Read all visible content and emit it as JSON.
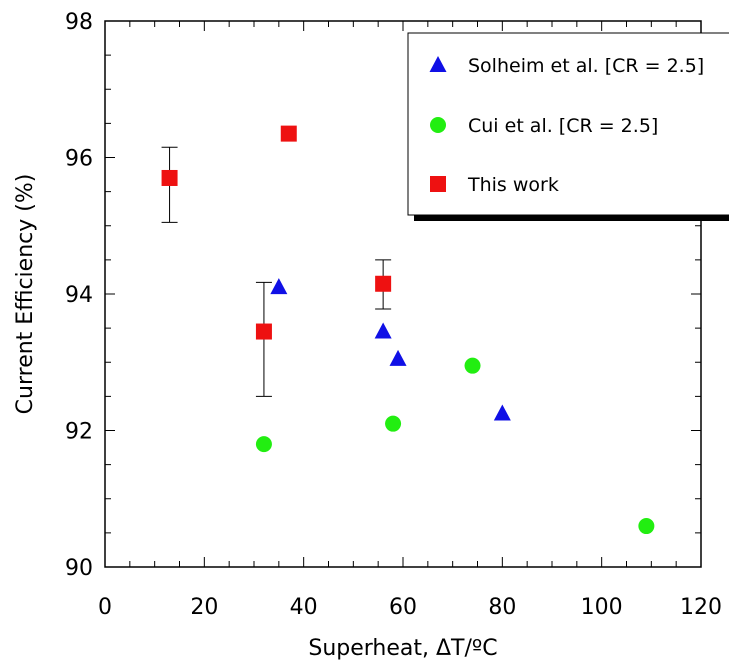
{
  "chart_data": {
    "type": "scatter",
    "xlabel": "Superheat, ΔT/ºC",
    "ylabel": "Current Efficiency (%)",
    "xlim": [
      0,
      120
    ],
    "ylim": [
      90,
      98
    ],
    "x_ticks": [
      "0",
      "20",
      "40",
      "60",
      "80",
      "100",
      "120"
    ],
    "y_ticks": [
      "90",
      "92",
      "94",
      "96",
      "98"
    ],
    "legend_position": "top-right",
    "grid": false,
    "series": [
      {
        "name": "Solheim et al. [CR = 2.5]",
        "marker": "triangle",
        "color": "#1010e6",
        "points": [
          {
            "x": 35,
            "y": 94.1
          },
          {
            "x": 56,
            "y": 93.45
          },
          {
            "x": 59,
            "y": 93.05
          },
          {
            "x": 80,
            "y": 92.25
          }
        ]
      },
      {
        "name": "Cui et al. [CR = 2.5]",
        "marker": "circle",
        "color": "#22ee11",
        "points": [
          {
            "x": 32,
            "y": 91.8
          },
          {
            "x": 58,
            "y": 92.1
          },
          {
            "x": 74,
            "y": 92.95
          },
          {
            "x": 109,
            "y": 90.6
          }
        ]
      },
      {
        "name": "This work",
        "marker": "square",
        "color": "#ee1111",
        "points": [
          {
            "x": 13,
            "y": 95.7,
            "err_low": 95.05,
            "err_high": 96.15
          },
          {
            "x": 37,
            "y": 96.35
          },
          {
            "x": 32,
            "y": 93.45,
            "err_low": 92.5,
            "err_high": 94.17
          },
          {
            "x": 56,
            "y": 94.15,
            "err_low": 93.78,
            "err_high": 94.5
          }
        ]
      }
    ]
  }
}
